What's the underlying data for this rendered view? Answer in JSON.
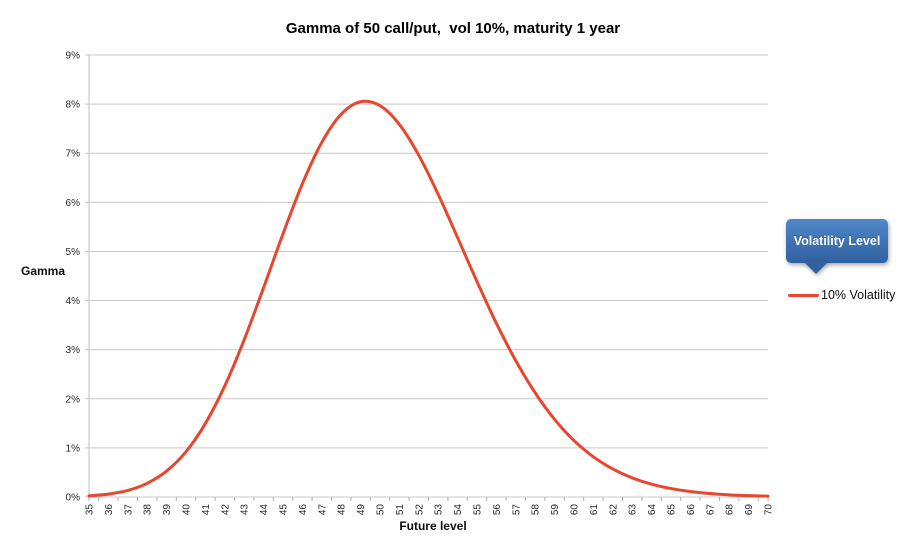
{
  "title": "Gamma of 50 call/put,  vol 10%, maturity 1 year",
  "axes": {
    "y_title": "Gamma",
    "x_title": "Future level"
  },
  "legend": {
    "header": "Volatility Level",
    "items": [
      {
        "label": "10% Volatility",
        "color": "#e8462f"
      }
    ]
  },
  "colors": {
    "line": "#e8462f",
    "grid": "#c9c9c9",
    "axis": "#c0c0c0",
    "tick": "#adadad",
    "tick_text": "#262626",
    "legend_blue_top": "#5089cb",
    "legend_blue_bottom": "#3161a0"
  },
  "chart_data": {
    "type": "line",
    "title": "Gamma of 50 call/put,  vol 10%, maturity 1 year",
    "xlabel": "Future level",
    "ylabel": "Gamma",
    "x": [
      35,
      36,
      37,
      38,
      39,
      40,
      41,
      42,
      43,
      44,
      45,
      46,
      47,
      48,
      49,
      50,
      51,
      52,
      53,
      54,
      55,
      56,
      57,
      58,
      59,
      60,
      61,
      62,
      63,
      64,
      65,
      66,
      67,
      68,
      69,
      70
    ],
    "series": [
      {
        "name": "10% Volatility",
        "color": "#e8462f",
        "values": [
          0.024,
          0.059,
          0.134,
          0.279,
          0.528,
          0.923,
          1.498,
          2.264,
          3.204,
          4.264,
          5.358,
          6.379,
          7.221,
          7.795,
          8.048,
          7.969,
          7.586,
          6.957,
          6.162,
          5.28,
          4.386,
          3.537,
          2.775,
          2.12,
          1.58,
          1.15,
          0.819,
          0.571,
          0.39,
          0.261,
          0.172,
          0.111,
          0.071,
          0.044,
          0.027,
          0.017
        ]
      }
    ],
    "ylim": [
      0,
      9
    ],
    "ytick_labels": [
      "0%",
      "1%",
      "2%",
      "3%",
      "4%",
      "5%",
      "6%",
      "7%",
      "8%",
      "9%"
    ],
    "grid": true,
    "legend_position": "right",
    "x_labels_rotated": true
  }
}
